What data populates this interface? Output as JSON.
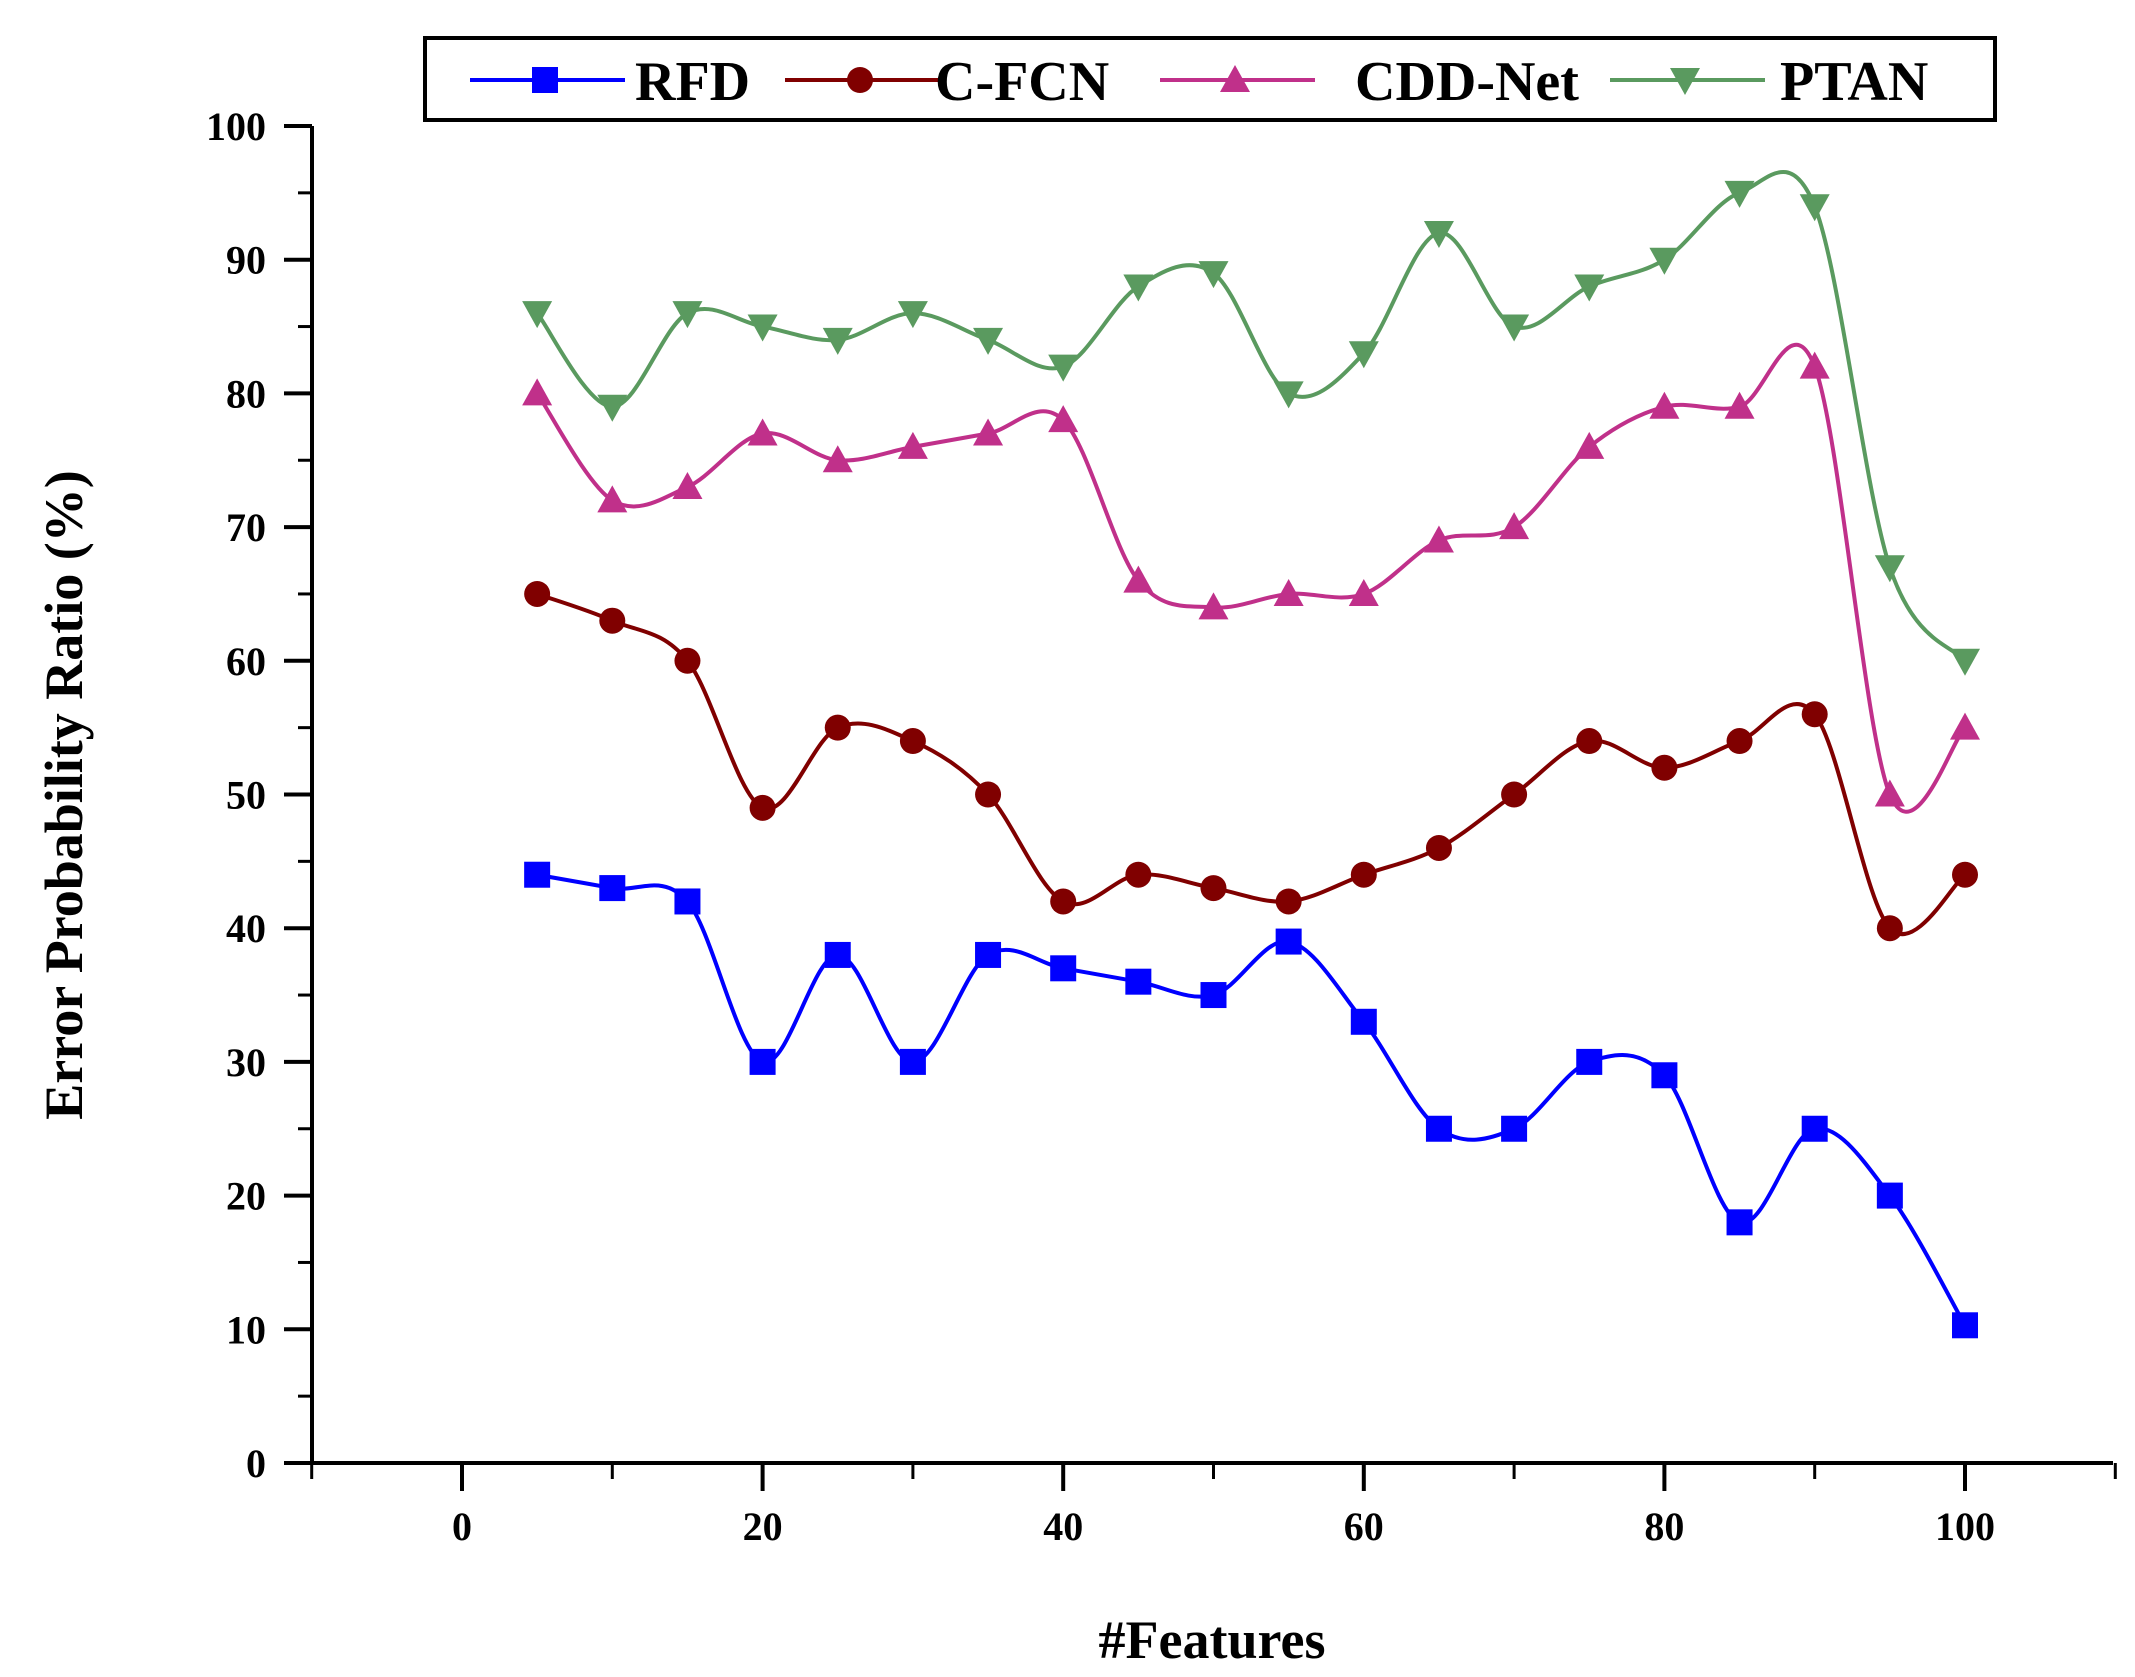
{
  "chart_data": {
    "type": "line",
    "title": "",
    "xlabel": "#Features",
    "ylabel": "Error Probability Ratio (%)",
    "xlim": [
      -10,
      110
    ],
    "ylim": [
      0,
      100
    ],
    "xticks": [
      0,
      20,
      40,
      60,
      80,
      100
    ],
    "yticks": [
      0,
      10,
      20,
      30,
      40,
      50,
      60,
      70,
      80,
      90,
      100
    ],
    "legend_position": "top",
    "x": [
      5,
      10,
      15,
      20,
      25,
      30,
      35,
      40,
      45,
      50,
      55,
      60,
      65,
      70,
      75,
      80,
      85,
      90,
      95,
      100
    ],
    "series": [
      {
        "name": "RFD",
        "color": "#0000ff",
        "marker": "square",
        "values": [
          44,
          43,
          42,
          30,
          38,
          30,
          38,
          37,
          36,
          35,
          39,
          33,
          25,
          25,
          30,
          29,
          18,
          25,
          20,
          10.3
        ]
      },
      {
        "name": "C-FCN",
        "color": "#800000",
        "marker": "circle",
        "values": [
          65,
          63,
          60,
          49,
          55,
          54,
          50,
          42,
          44,
          43,
          42,
          44,
          46,
          50,
          54,
          52,
          54,
          56,
          40,
          44
        ]
      },
      {
        "name": "CDD-Net",
        "color": "#c0308a",
        "marker": "triangle-up",
        "values": [
          80,
          72,
          73,
          77,
          75,
          76,
          77,
          78,
          66,
          64,
          65,
          65,
          69,
          70,
          76,
          79,
          79,
          82,
          50,
          55
        ]
      },
      {
        "name": "PTAN",
        "color": "#5a9a5f",
        "marker": "triangle-down",
        "values": [
          86,
          79,
          86,
          85,
          84,
          86,
          84,
          82,
          88,
          89,
          80,
          83,
          92,
          85,
          88,
          90,
          95,
          94,
          67,
          60
        ]
      }
    ]
  }
}
